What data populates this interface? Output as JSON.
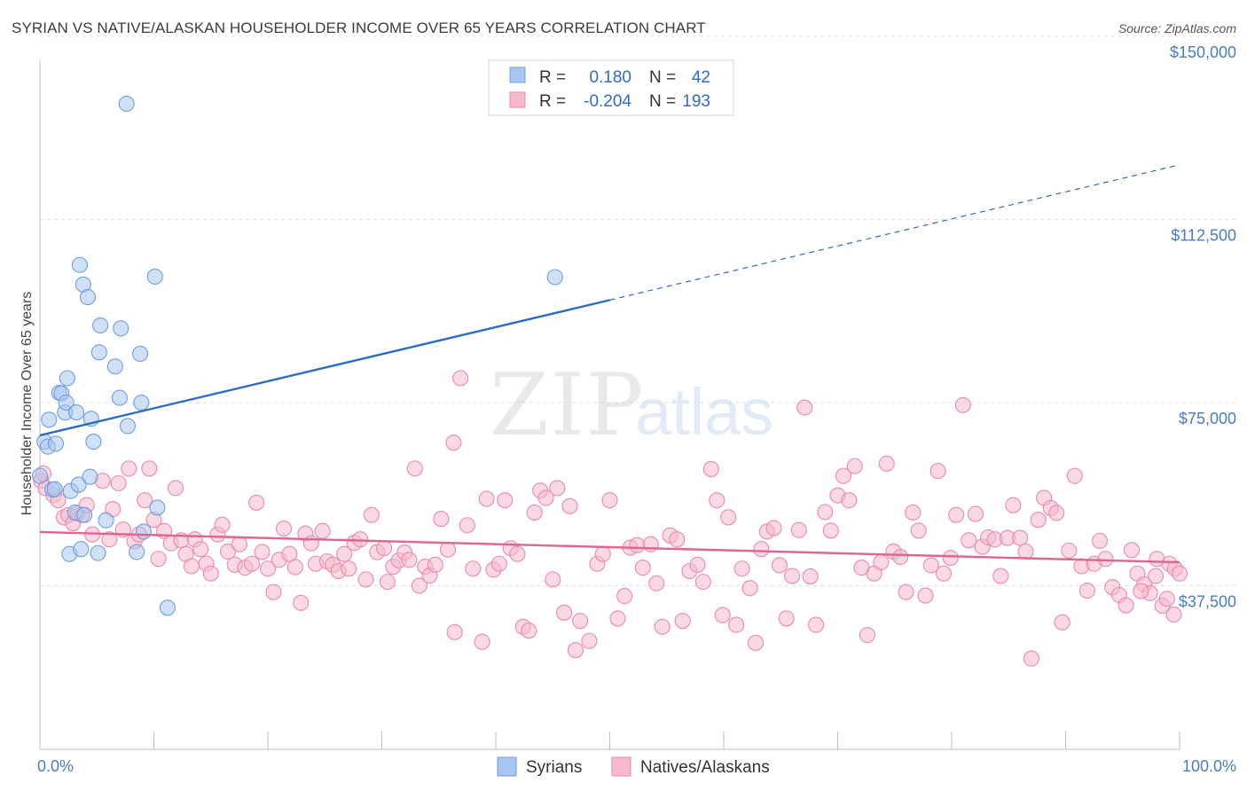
{
  "title": "SYRIAN VS NATIVE/ALASKAN HOUSEHOLDER INCOME OVER 65 YEARS CORRELATION CHART",
  "source": "Source: ZipAtlas.com",
  "watermark": {
    "zip": "ZIP",
    "atlas": "atlas"
  },
  "colors": {
    "blue_fill": "#a9c6ee",
    "blue_stroke": "#6f9fe0",
    "blue_line": "#2b6cc9",
    "pink_fill": "#f6b9cb",
    "pink_stroke": "#e98aab",
    "pink_line": "#e0658f",
    "grid": "#dcdcdc",
    "tick_text": "#4a7cc4"
  },
  "legend": {
    "rows": [
      {
        "r_label": "R =",
        "r_value": "0.180",
        "n_label": "N =",
        "n_value": "42"
      },
      {
        "r_label": "R =",
        "r_value": "-0.204",
        "n_label": "N =",
        "n_value": "193"
      }
    ]
  },
  "bottom_legend": [
    "Syrians",
    "Natives/Alaskans"
  ],
  "chart_data": {
    "type": "scatter",
    "title": "SYRIAN VS NATIVE/ALASKAN HOUSEHOLDER INCOME OVER 65 YEARS CORRELATION CHART",
    "xlabel": "",
    "ylabel": "Householder Income Over 65 years",
    "xlim": [
      0,
      100
    ],
    "ylim": [
      4000,
      154000
    ],
    "x_tick_labels": [
      "0.0%",
      "100.0%"
    ],
    "y_ticks": [
      37500,
      75000,
      112500,
      150000
    ],
    "y_tick_labels": [
      "$37,500",
      "$75,000",
      "$112,500",
      "$150,000"
    ],
    "series": [
      {
        "name": "Syrians",
        "R": 0.18,
        "N": 42,
        "trend": {
          "x0": 0,
          "y0": 68300,
          "x1": 50,
          "y1": 96000,
          "dash_to_x": 100,
          "dash_to_y": 123700
        },
        "points": [
          [
            0,
            60000
          ],
          [
            0.4,
            67000
          ],
          [
            0.7,
            66000
          ],
          [
            0.8,
            71500
          ],
          [
            1.1,
            57200
          ],
          [
            1.3,
            57300
          ],
          [
            1.4,
            66600
          ],
          [
            1.7,
            77000
          ],
          [
            1.9,
            76900
          ],
          [
            2.2,
            73000
          ],
          [
            2.3,
            75000
          ],
          [
            2.4,
            80000
          ],
          [
            2.6,
            44000
          ],
          [
            2.7,
            56900
          ],
          [
            3.1,
            52500
          ],
          [
            3.2,
            73000
          ],
          [
            3.4,
            58200
          ],
          [
            3.5,
            103200
          ],
          [
            3.6,
            45000
          ],
          [
            3.8,
            99200
          ],
          [
            3.9,
            52000
          ],
          [
            4.2,
            96600
          ],
          [
            4.4,
            59800
          ],
          [
            4.5,
            71700
          ],
          [
            4.7,
            67000
          ],
          [
            5.1,
            44200
          ],
          [
            5.2,
            85300
          ],
          [
            5.3,
            90800
          ],
          [
            5.8,
            50900
          ],
          [
            6.6,
            82400
          ],
          [
            7.0,
            76000
          ],
          [
            7.1,
            90200
          ],
          [
            7.6,
            136200
          ],
          [
            7.7,
            70200
          ],
          [
            8.8,
            85000
          ],
          [
            8.5,
            44400
          ],
          [
            8.9,
            75000
          ],
          [
            9.1,
            48600
          ],
          [
            10.1,
            100800
          ],
          [
            10.3,
            53500
          ],
          [
            11.2,
            33000
          ],
          [
            45.2,
            100700
          ]
        ]
      },
      {
        "name": "Natives/Alaskans",
        "R": -0.204,
        "N": 193,
        "trend": {
          "x0": 0,
          "y0": 48500,
          "x1": 100,
          "y1": 42300
        },
        "points": [
          [
            0.1,
            59000
          ],
          [
            0.3,
            60500
          ],
          [
            0.5,
            57500
          ],
          [
            1.2,
            56000
          ],
          [
            1.6,
            55000
          ],
          [
            2.1,
            51500
          ],
          [
            2.5,
            52000
          ],
          [
            2.9,
            50300
          ],
          [
            3.3,
            52300
          ],
          [
            3.7,
            52000
          ],
          [
            4.1,
            54000
          ],
          [
            4.6,
            48000
          ],
          [
            5.5,
            59000
          ],
          [
            6.1,
            47000
          ],
          [
            6.4,
            53200
          ],
          [
            6.9,
            58500
          ],
          [
            7.3,
            49000
          ],
          [
            7.8,
            61500
          ],
          [
            8.3,
            46600
          ],
          [
            8.7,
            48000
          ],
          [
            9.2,
            55000
          ],
          [
            9.6,
            61500
          ],
          [
            10.0,
            51000
          ],
          [
            10.4,
            43000
          ],
          [
            10.9,
            48700
          ],
          [
            11.5,
            46200
          ],
          [
            11.9,
            57500
          ],
          [
            12.4,
            46800
          ],
          [
            12.8,
            44000
          ],
          [
            13.3,
            41500
          ],
          [
            13.6,
            47000
          ],
          [
            14.1,
            45000
          ],
          [
            14.6,
            42000
          ],
          [
            15.0,
            40000
          ],
          [
            15.6,
            48000
          ],
          [
            16.0,
            50000
          ],
          [
            16.5,
            44500
          ],
          [
            17.1,
            41800
          ],
          [
            17.5,
            46000
          ],
          [
            18.0,
            41200
          ],
          [
            18.6,
            42000
          ],
          [
            19.0,
            54500
          ],
          [
            19.5,
            44400
          ],
          [
            20.0,
            41000
          ],
          [
            20.5,
            36200
          ],
          [
            21.0,
            42800
          ],
          [
            21.4,
            49200
          ],
          [
            21.9,
            44000
          ],
          [
            22.4,
            41300
          ],
          [
            22.9,
            34000
          ],
          [
            23.3,
            48200
          ],
          [
            23.8,
            46200
          ],
          [
            24.2,
            42000
          ],
          [
            24.8,
            48700
          ],
          [
            25.2,
            42500
          ],
          [
            25.7,
            41800
          ],
          [
            26.2,
            40500
          ],
          [
            26.7,
            44000
          ],
          [
            27.1,
            41000
          ],
          [
            27.6,
            46300
          ],
          [
            28.1,
            47000
          ],
          [
            28.6,
            38800
          ],
          [
            29.1,
            52000
          ],
          [
            29.6,
            44400
          ],
          [
            30.2,
            45200
          ],
          [
            30.5,
            38300
          ],
          [
            31.0,
            41400
          ],
          [
            31.5,
            42700
          ],
          [
            32.0,
            44300
          ],
          [
            32.4,
            42800
          ],
          [
            32.9,
            61500
          ],
          [
            33.3,
            37500
          ],
          [
            33.8,
            41400
          ],
          [
            34.2,
            39600
          ],
          [
            34.7,
            41800
          ],
          [
            35.2,
            51200
          ],
          [
            35.8,
            44900
          ],
          [
            36.3,
            66800
          ],
          [
            36.4,
            28000
          ],
          [
            36.9,
            80000
          ],
          [
            37.5,
            49900
          ],
          [
            38.0,
            41000
          ],
          [
            38.8,
            26000
          ],
          [
            39.2,
            55300
          ],
          [
            39.8,
            40800
          ],
          [
            40.3,
            42000
          ],
          [
            40.8,
            55000
          ],
          [
            41.3,
            45200
          ],
          [
            41.9,
            44000
          ],
          [
            42.4,
            29100
          ],
          [
            42.9,
            28300
          ],
          [
            43.4,
            52500
          ],
          [
            43.9,
            57000
          ],
          [
            44.4,
            55500
          ],
          [
            45.0,
            38800
          ],
          [
            45.4,
            57500
          ],
          [
            46.0,
            32000
          ],
          [
            46.5,
            53800
          ],
          [
            47.0,
            24300
          ],
          [
            47.4,
            30300
          ],
          [
            48.2,
            26200
          ],
          [
            48.9,
            42000
          ],
          [
            49.4,
            44000
          ],
          [
            50.0,
            55000
          ],
          [
            50.7,
            30800
          ],
          [
            51.3,
            35400
          ],
          [
            51.8,
            45300
          ],
          [
            52.4,
            45800
          ],
          [
            52.9,
            41200
          ],
          [
            53.6,
            46000
          ],
          [
            54.1,
            38000
          ],
          [
            54.6,
            29100
          ],
          [
            55.3,
            47800
          ],
          [
            55.9,
            47000
          ],
          [
            56.4,
            30300
          ],
          [
            57.0,
            40500
          ],
          [
            57.7,
            41800
          ],
          [
            58.2,
            38300
          ],
          [
            58.9,
            61400
          ],
          [
            59.4,
            55000
          ],
          [
            59.9,
            31500
          ],
          [
            60.4,
            51500
          ],
          [
            61.1,
            29500
          ],
          [
            61.6,
            41000
          ],
          [
            62.3,
            37000
          ],
          [
            62.8,
            25800
          ],
          [
            63.3,
            45000
          ],
          [
            63.8,
            48600
          ],
          [
            64.4,
            49300
          ],
          [
            64.9,
            41700
          ],
          [
            65.5,
            30800
          ],
          [
            66.0,
            39500
          ],
          [
            66.6,
            48900
          ],
          [
            67.1,
            74000
          ],
          [
            67.6,
            39400
          ],
          [
            68.1,
            29500
          ],
          [
            68.9,
            52600
          ],
          [
            69.4,
            48800
          ],
          [
            70.0,
            56000
          ],
          [
            70.5,
            60000
          ],
          [
            71.0,
            55000
          ],
          [
            71.5,
            62000
          ],
          [
            72.1,
            41200
          ],
          [
            72.6,
            27400
          ],
          [
            73.2,
            40000
          ],
          [
            73.8,
            42300
          ],
          [
            74.3,
            62500
          ],
          [
            74.9,
            44500
          ],
          [
            75.5,
            43400
          ],
          [
            76.0,
            36200
          ],
          [
            76.6,
            52500
          ],
          [
            77.1,
            48800
          ],
          [
            77.7,
            35500
          ],
          [
            78.2,
            41700
          ],
          [
            78.8,
            61000
          ],
          [
            79.3,
            40000
          ],
          [
            79.9,
            43200
          ],
          [
            80.4,
            52000
          ],
          [
            81.0,
            74500
          ],
          [
            81.5,
            46800
          ],
          [
            82.1,
            52200
          ],
          [
            82.7,
            45500
          ],
          [
            83.2,
            47400
          ],
          [
            83.8,
            47000
          ],
          [
            84.3,
            39500
          ],
          [
            84.9,
            47300
          ],
          [
            85.4,
            54000
          ],
          [
            86.0,
            47300
          ],
          [
            86.5,
            44500
          ],
          [
            87.0,
            22600
          ],
          [
            87.6,
            51000
          ],
          [
            88.1,
            55500
          ],
          [
            88.7,
            53400
          ],
          [
            89.2,
            52400
          ],
          [
            89.7,
            30000
          ],
          [
            90.3,
            44700
          ],
          [
            90.8,
            60000
          ],
          [
            91.4,
            41500
          ],
          [
            91.9,
            36500
          ],
          [
            92.5,
            42000
          ],
          [
            93.0,
            46700
          ],
          [
            93.5,
            43000
          ],
          [
            94.1,
            37200
          ],
          [
            94.7,
            35600
          ],
          [
            95.3,
            33500
          ],
          [
            95.8,
            44800
          ],
          [
            96.3,
            40000
          ],
          [
            96.9,
            37800
          ],
          [
            97.4,
            36000
          ],
          [
            98.0,
            43000
          ],
          [
            98.5,
            33400
          ],
          [
            99.1,
            42000
          ],
          [
            99.6,
            41000
          ],
          [
            100.0,
            40000
          ],
          [
            99.5,
            31600
          ],
          [
            98.9,
            34800
          ],
          [
            97.9,
            39500
          ],
          [
            96.6,
            36400
          ]
        ]
      }
    ]
  }
}
